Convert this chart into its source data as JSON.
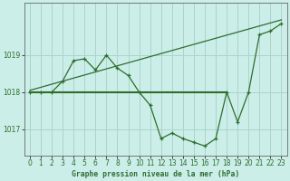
{
  "title": "Graphe pression niveau de la mer (hPa)",
  "background_color": "#cceee8",
  "grid_color": "#aad4cc",
  "line_color": "#2d6e2d",
  "xlim": [
    -0.5,
    23.5
  ],
  "ylim": [
    1016.3,
    1020.4
  ],
  "yticks": [
    1017,
    1018,
    1019
  ],
  "xticks": [
    0,
    1,
    2,
    3,
    4,
    5,
    6,
    7,
    8,
    9,
    10,
    11,
    12,
    13,
    14,
    15,
    16,
    17,
    18,
    19,
    20,
    21,
    22,
    23
  ],
  "main_line_x": [
    0,
    1,
    2,
    3,
    4,
    5,
    6,
    7,
    8,
    9,
    10,
    11,
    12,
    13,
    14,
    15,
    16,
    17,
    18,
    19,
    20,
    21,
    22,
    23
  ],
  "main_line_y": [
    1018.0,
    1018.0,
    1018.0,
    1018.3,
    1018.85,
    1018.9,
    1018.6,
    1019.0,
    1018.65,
    1018.45,
    1018.0,
    1017.65,
    1016.75,
    1016.9,
    1016.75,
    1016.65,
    1016.55,
    1016.75,
    1018.0,
    1017.2,
    1018.0,
    1019.55,
    1019.65,
    1019.85
  ],
  "trend_line_x": [
    0,
    23
  ],
  "trend_line_y": [
    1018.05,
    1019.95
  ],
  "flat_line_x": [
    0,
    18
  ],
  "flat_line_y": [
    1018.0,
    1018.0
  ],
  "title_fontsize": 5.8,
  "tick_fontsize": 5.5
}
